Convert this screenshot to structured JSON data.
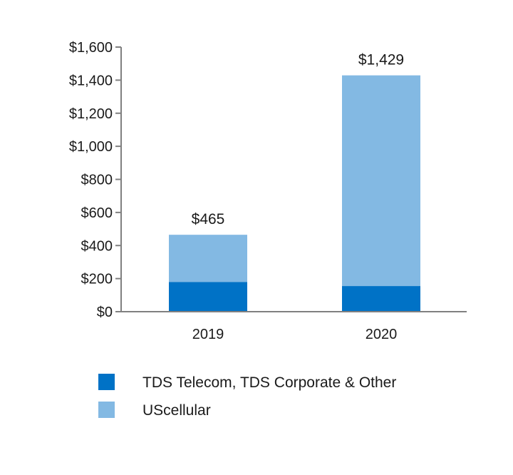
{
  "chart_data": {
    "type": "bar",
    "stacked": true,
    "categories": [
      "2019",
      "2020"
    ],
    "series": [
      {
        "name": "TDS Telecom, TDS Corporate & Other",
        "values": [
          180,
          155
        ],
        "color": "#0072c6"
      },
      {
        "name": "UScellular",
        "values": [
          285,
          1274
        ],
        "color": "#83b9e3"
      }
    ],
    "totals": [
      465,
      1429
    ],
    "total_labels": [
      "$465",
      "$1,429"
    ],
    "y_ticks": [
      0,
      200,
      400,
      600,
      800,
      1000,
      1200,
      1400,
      1600
    ],
    "y_tick_labels": [
      "$0",
      "$200",
      "$400",
      "$600",
      "$800",
      "$1,000",
      "$1,200",
      "$1,400",
      "$1,600"
    ],
    "ylim": [
      0,
      1600
    ],
    "grid": false,
    "legend_position": "bottom-left",
    "axis_color": "#808080"
  }
}
